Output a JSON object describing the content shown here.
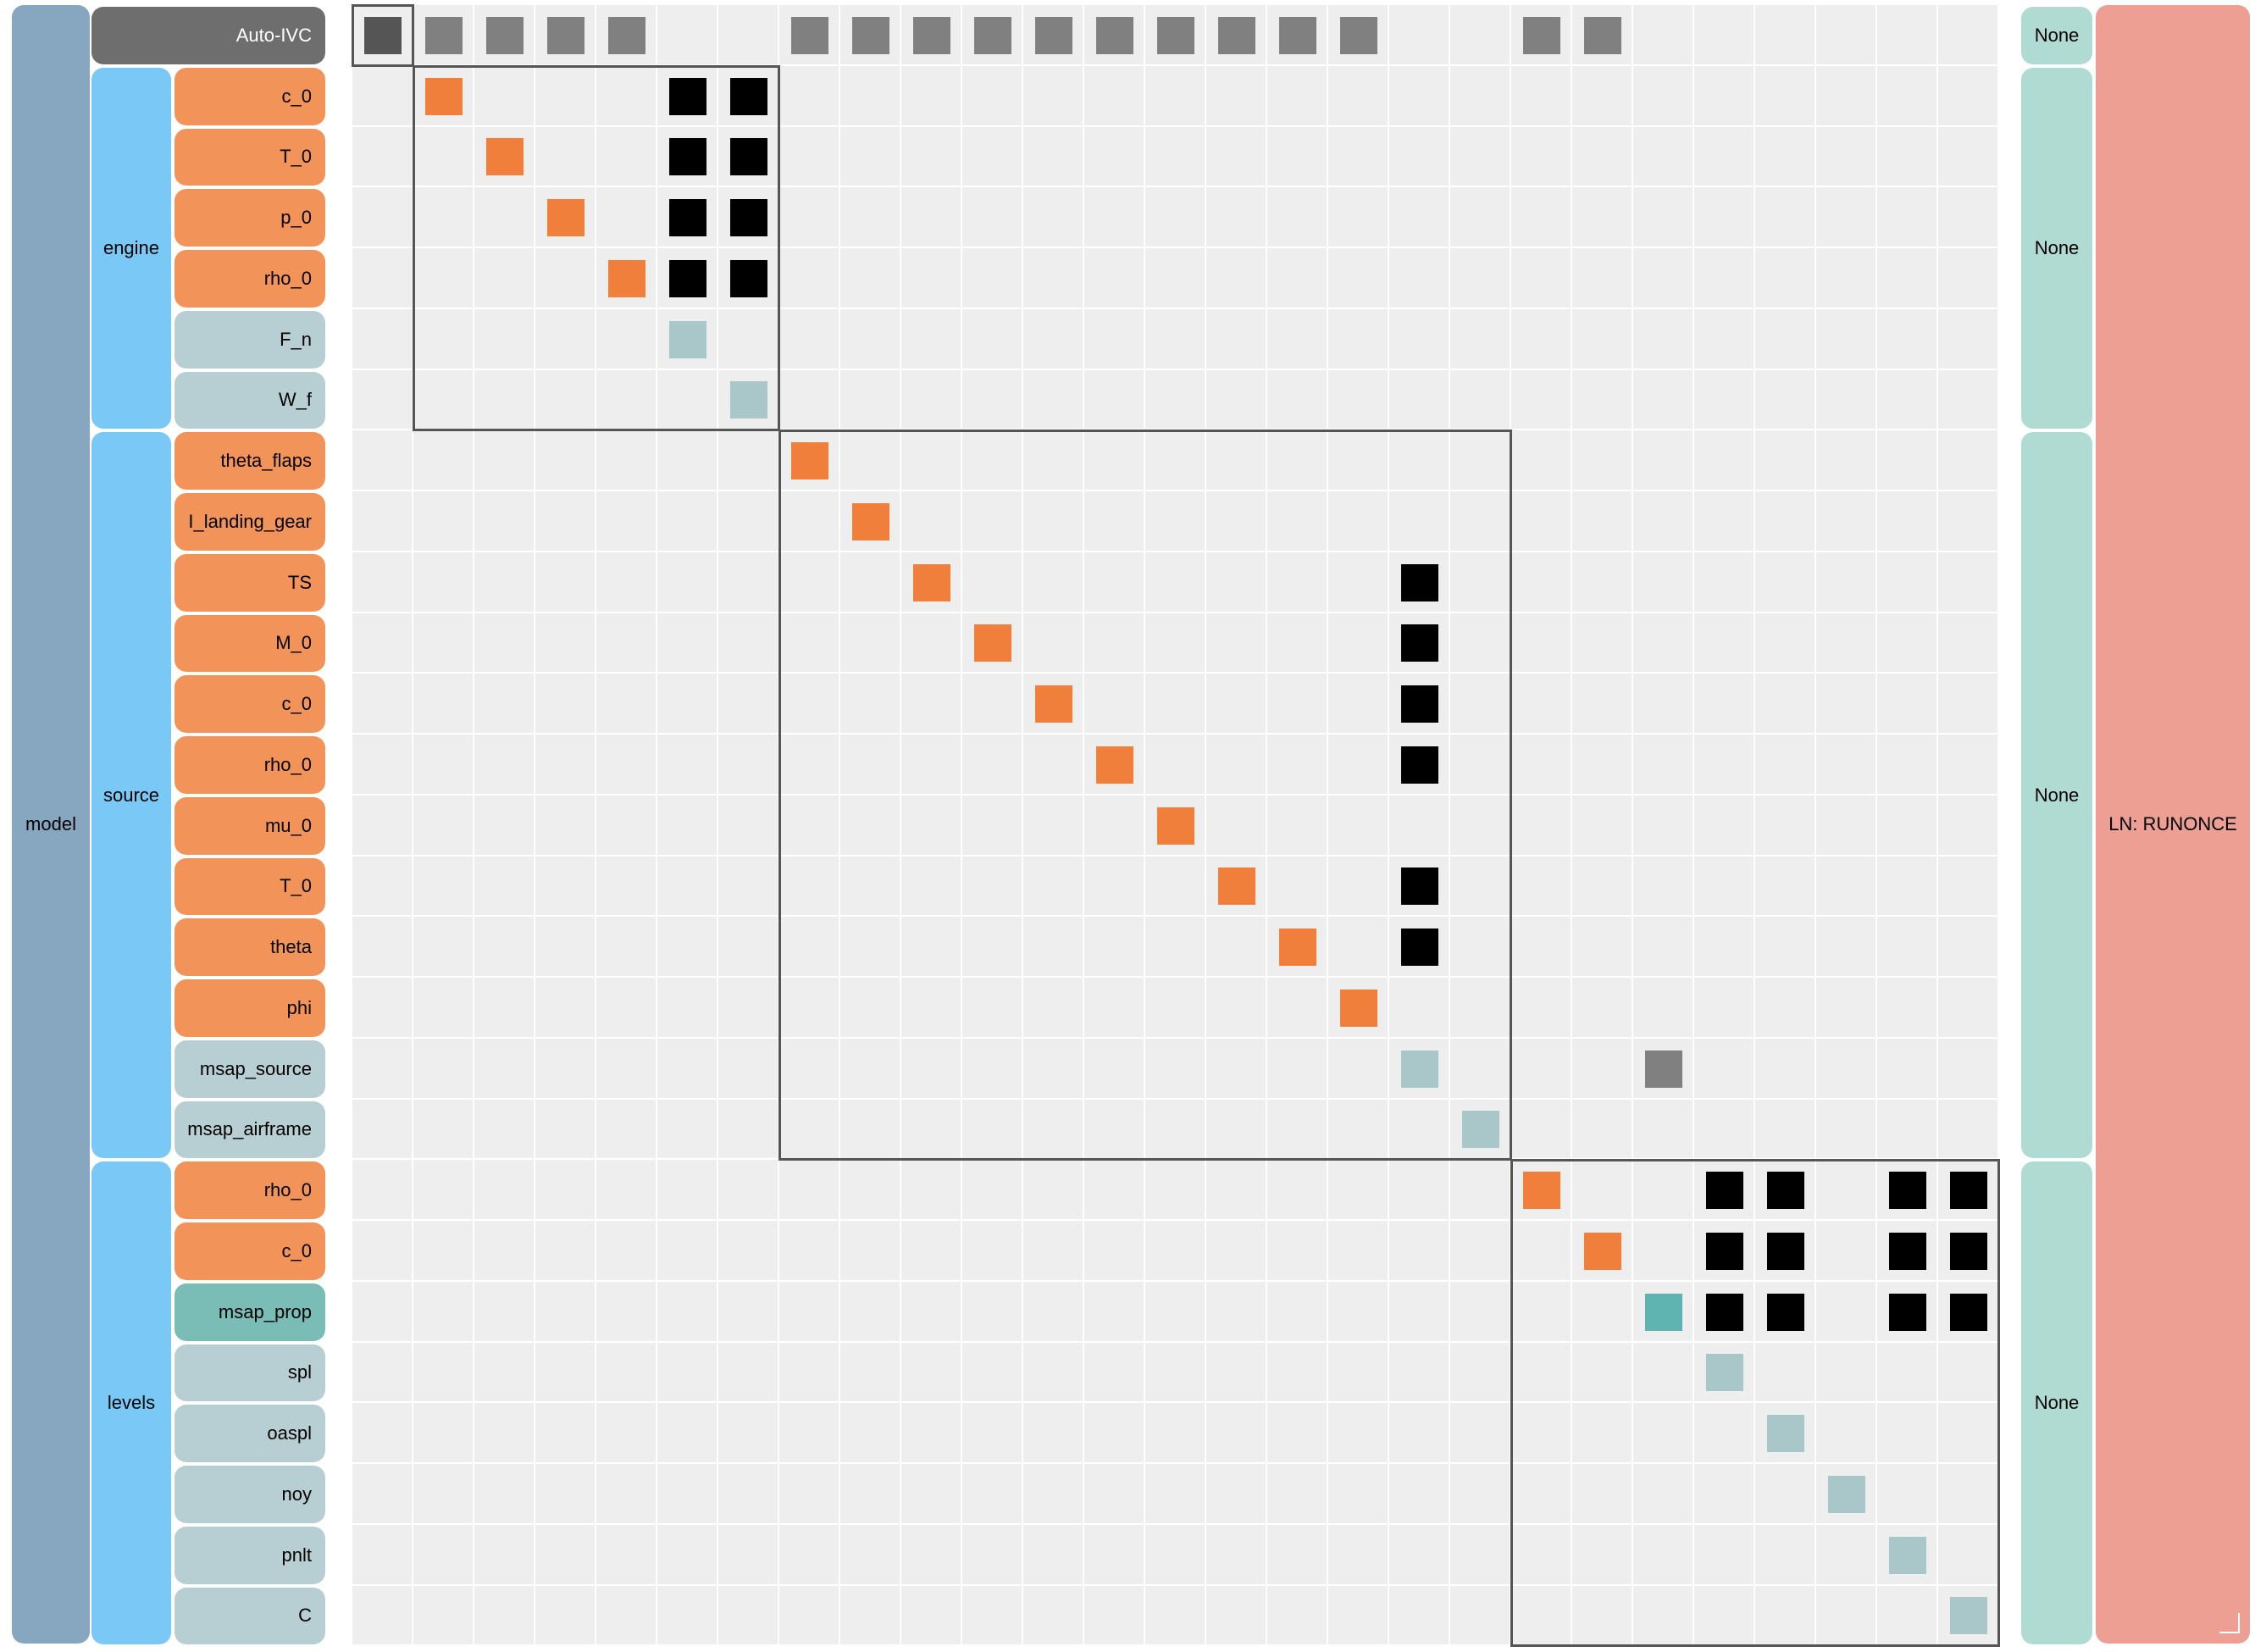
{
  "model_label": "model",
  "groups": [
    {
      "id": "engine",
      "label": "engine",
      "solver": "None"
    },
    {
      "id": "source",
      "label": "source",
      "solver": "None"
    },
    {
      "id": "levels",
      "label": "levels",
      "solver": "None"
    }
  ],
  "top_solver": "None",
  "outer_solver": "LN: RUNONCE",
  "auto_ivc_label": "Auto-IVC",
  "colors": {
    "input": "#f29459",
    "output": "#b7cfd2",
    "state": "#79bdb6",
    "group": "#79c8f6",
    "model": "#87a6c0",
    "solver": "#b0dbd3",
    "outer_solver": "#ee9f93",
    "ivc": "#6e6e6e",
    "diag_input": "#f07f3c",
    "diag_output": "#a9c6c9",
    "diag_state": "#5fb3b0",
    "connection": "#000000",
    "ivc_connection": "#808080"
  },
  "rows": [
    {
      "label": "Auto-IVC",
      "kind": "ivc",
      "group": "top"
    },
    {
      "label": "c_0",
      "kind": "input",
      "group": "engine"
    },
    {
      "label": "T_0",
      "kind": "input",
      "group": "engine"
    },
    {
      "label": "p_0",
      "kind": "input",
      "group": "engine"
    },
    {
      "label": "rho_0",
      "kind": "input",
      "group": "engine"
    },
    {
      "label": "F_n",
      "kind": "output",
      "group": "engine"
    },
    {
      "label": "W_f",
      "kind": "output",
      "group": "engine"
    },
    {
      "label": "theta_flaps",
      "kind": "input",
      "group": "source"
    },
    {
      "label": "I_landing_gear",
      "kind": "input",
      "group": "source"
    },
    {
      "label": "TS",
      "kind": "input",
      "group": "source"
    },
    {
      "label": "M_0",
      "kind": "input",
      "group": "source"
    },
    {
      "label": "c_0",
      "kind": "input",
      "group": "source"
    },
    {
      "label": "rho_0",
      "kind": "input",
      "group": "source"
    },
    {
      "label": "mu_0",
      "kind": "input",
      "group": "source"
    },
    {
      "label": "T_0",
      "kind": "input",
      "group": "source"
    },
    {
      "label": "theta",
      "kind": "input",
      "group": "source"
    },
    {
      "label": "phi",
      "kind": "input",
      "group": "source"
    },
    {
      "label": "msap_source",
      "kind": "output",
      "group": "source"
    },
    {
      "label": "msap_airframe",
      "kind": "output",
      "group": "source"
    },
    {
      "label": "rho_0",
      "kind": "input",
      "group": "levels"
    },
    {
      "label": "c_0",
      "kind": "input",
      "group": "levels"
    },
    {
      "label": "msap_prop",
      "kind": "state",
      "group": "levels"
    },
    {
      "label": "spl",
      "kind": "output",
      "group": "levels"
    },
    {
      "label": "oaspl",
      "kind": "output",
      "group": "levels"
    },
    {
      "label": "noy",
      "kind": "output",
      "group": "levels"
    },
    {
      "label": "pnlt",
      "kind": "output",
      "group": "levels"
    },
    {
      "label": "C",
      "kind": "output",
      "group": "levels"
    }
  ],
  "connections": [
    [
      0,
      1
    ],
    [
      0,
      2
    ],
    [
      0,
      3
    ],
    [
      0,
      4
    ],
    [
      0,
      7
    ],
    [
      0,
      8
    ],
    [
      0,
      9
    ],
    [
      0,
      10
    ],
    [
      0,
      11
    ],
    [
      0,
      12
    ],
    [
      0,
      13
    ],
    [
      0,
      14
    ],
    [
      0,
      15
    ],
    [
      0,
      16
    ],
    [
      0,
      19
    ],
    [
      0,
      20
    ],
    [
      1,
      5
    ],
    [
      1,
      6
    ],
    [
      2,
      5
    ],
    [
      2,
      6
    ],
    [
      3,
      5
    ],
    [
      3,
      6
    ],
    [
      4,
      5
    ],
    [
      4,
      6
    ],
    [
      9,
      17
    ],
    [
      10,
      17
    ],
    [
      11,
      17
    ],
    [
      12,
      17
    ],
    [
      14,
      17
    ],
    [
      15,
      17
    ],
    [
      17,
      21
    ],
    [
      19,
      22
    ],
    [
      19,
      23
    ],
    [
      19,
      25
    ],
    [
      19,
      26
    ],
    [
      20,
      22
    ],
    [
      20,
      23
    ],
    [
      20,
      25
    ],
    [
      20,
      26
    ],
    [
      21,
      22
    ],
    [
      21,
      23
    ],
    [
      21,
      25
    ],
    [
      21,
      26
    ]
  ]
}
